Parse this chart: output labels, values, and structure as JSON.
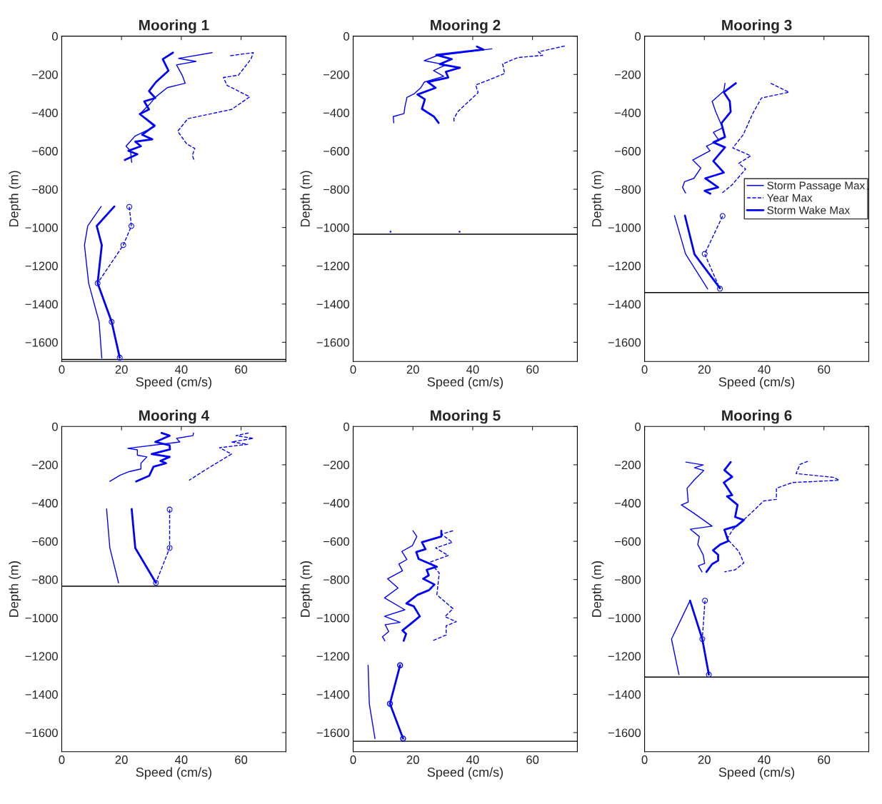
{
  "chart_data": [
    {
      "type": "line",
      "title": "Mooring 1",
      "xlabel": "Speed (cm/s)",
      "ylabel": "Depth (m)",
      "xlim": [
        0,
        75
      ],
      "ylim": [
        -1700,
        0
      ],
      "xticks": [
        0,
        20,
        40,
        60
      ],
      "yticks": [
        -1600,
        -1400,
        -1200,
        -1000,
        -800,
        -600,
        -400,
        -200,
        0
      ],
      "series": [
        {
          "color": "#0000ff",
          "line_style": "solid",
          "marker": "none",
          "x": [
            50.3,
            39.1,
            44.9,
            38.4,
            40.3,
            41.3,
            35.3,
            31.5,
            29.2,
            26.1,
            31.1,
            24.6,
            21.5,
            23.0,
            23.4
          ],
          "values": [
            -86,
            -116,
            -132,
            -150,
            -204,
            -246,
            -269,
            -317,
            -359,
            -407,
            -473,
            -521,
            -575,
            -599,
            -659
          ]
        },
        {
          "color": "#0000ff",
          "line_style": "dashed",
          "marker": "none",
          "x": [
            56.4,
            64.1,
            63.3,
            59.1,
            54.1,
            55.3,
            62.9,
            56.8,
            42.2,
            38.8,
            41.8,
            44.5,
            43.7,
            44.4
          ],
          "values": [
            -102,
            -86,
            -120,
            -204,
            -216,
            -257,
            -317,
            -383,
            -431,
            -497,
            -563,
            -587,
            -623,
            -653
          ]
        },
        {
          "color": "#0000ff",
          "line_style": "solid",
          "marker": "none",
          "x": [
            37.2,
            33.8,
            35.7,
            31.5,
            29.2,
            31.3,
            27.6,
            29.2,
            26.1,
            31.1,
            26.9,
            30.3,
            24.6,
            26.5,
            22.3,
            25.3,
            21.1
          ],
          "values": [
            -86,
            -120,
            -180,
            -240,
            -287,
            -323,
            -341,
            -383,
            -407,
            -467,
            -515,
            -539,
            -551,
            -575,
            -599,
            -617,
            -647
          ]
        },
        {
          "color": "#0000ff",
          "line_style": "solid",
          "marker": "none",
          "x": [
            13.2,
            8.7,
            7.6,
            9.0,
            12.5,
            13.4
          ],
          "values": [
            -890,
            -992,
            -1092,
            -1291,
            -1493,
            -1683
          ]
        },
        {
          "color": "#0000ff",
          "line_style": "dashed",
          "marker": "circle",
          "x": [
            22.6,
            23.3,
            20.6,
            12.0,
            16.7,
            19.4
          ],
          "values": [
            -892,
            -992,
            -1092,
            -1291,
            -1493,
            -1680
          ]
        },
        {
          "color": "#0000ff",
          "line_style": "solid",
          "marker": "none",
          "x": [
            17.6,
            11.7,
            13.4,
            12.0,
            16.7,
            19.4
          ],
          "values": [
            -890,
            -992,
            -1092,
            -1291,
            -1493,
            -1680
          ]
        }
      ],
      "ref_lines": [
        {
          "axis": "y",
          "value": -1690,
          "color": "#000000"
        }
      ]
    },
    {
      "type": "line",
      "title": "Mooring 2",
      "xlabel": "Speed (cm/s)",
      "ylabel": "Depth (m)",
      "xlim": [
        0,
        75
      ],
      "ylim": [
        -1700,
        0
      ],
      "xticks": [
        0,
        20,
        40,
        60
      ],
      "yticks": [
        -1600,
        -1400,
        -1200,
        -1000,
        -800,
        -600,
        -400,
        -200,
        0
      ],
      "series": [
        {
          "color": "#0000ff",
          "line_style": "solid",
          "marker": "none",
          "x": [
            46.4,
            28.0,
            23.8,
            31.0,
            26.9,
            30.3,
            23.8,
            22.6,
            20.5,
            18.0,
            17.3,
            17.0,
            13.4,
            13.6
          ],
          "values": [
            -66,
            -102,
            -128,
            -150,
            -180,
            -210,
            -240,
            -270,
            -300,
            -320,
            -370,
            -405,
            -420,
            -453
          ]
        },
        {
          "color": "#0000ff",
          "line_style": "dashed",
          "marker": "none",
          "x": [
            70.8,
            62.0,
            63.4,
            55.0,
            50.0,
            50.7,
            46.0,
            41.0,
            41.8,
            38.0,
            35.0,
            33.7,
            33.8
          ],
          "values": [
            -51,
            -82,
            -100,
            -112,
            -145,
            -195,
            -225,
            -255,
            -295,
            -350,
            -395,
            -430,
            -453
          ]
        },
        {
          "color": "#0000ff",
          "line_style": "solid",
          "marker": "none",
          "x": [
            41.4,
            43.6,
            27.8,
            33.0,
            29.0,
            35.7,
            31.0,
            31.8,
            25.0,
            27.6,
            21.5,
            24.0,
            23.0,
            27.0,
            28.6
          ],
          "values": [
            -54,
            -70,
            -98,
            -120,
            -146,
            -165,
            -186,
            -216,
            -240,
            -270,
            -305,
            -330,
            -380,
            -420,
            -453
          ]
        },
        {
          "type": "scatter",
          "color": "#0000ff",
          "x": [
            12.5,
            35.6
          ],
          "values": [
            -1022,
            -1022
          ]
        }
      ],
      "ref_lines": [
        {
          "axis": "y",
          "value": -1035,
          "color": "#000000"
        }
      ]
    },
    {
      "type": "line",
      "title": "Mooring 3",
      "xlabel": "Speed (cm/s)",
      "ylabel": "Depth (m)",
      "xlim": [
        0,
        75
      ],
      "ylim": [
        -1700,
        0
      ],
      "xticks": [
        0,
        20,
        40,
        60
      ],
      "yticks": [
        -1600,
        -1400,
        -1200,
        -1000,
        -800,
        -600,
        -400,
        -200,
        0
      ],
      "legend": "right",
      "series": [
        {
          "name": "Storm Passage Max",
          "color": "#0000ff",
          "line_style": "solid",
          "marker": "none",
          "x": [
            26.9,
            26.5,
            22.6,
            23.8,
            26.1,
            23.0,
            24.9,
            20.7,
            21.9,
            16.1,
            18.8,
            16.5,
            13.4,
            12.7,
            13.7
          ],
          "values": [
            -246,
            -287,
            -341,
            -395,
            -479,
            -503,
            -545,
            -575,
            -599,
            -647,
            -689,
            -743,
            -760,
            -790,
            -820
          ]
        },
        {
          "name": "Year Max",
          "color": "#0000ff",
          "line_style": "dashed",
          "marker": "none",
          "x": [
            42.2,
            48.3,
            39.1,
            36.1,
            33.0,
            29.5,
            35.5,
            31.5,
            33.8,
            29.2,
            25.9
          ],
          "values": [
            -246,
            -293,
            -323,
            -407,
            -515,
            -584,
            -625,
            -665,
            -695,
            -778,
            -820
          ]
        },
        {
          "name": "Storm Wake Max",
          "color": "#0000ff",
          "line_style": "solid",
          "marker": "none",
          "x": [
            30.5,
            26.5,
            28.5,
            28.8,
            25.7,
            26.9,
            23.0,
            26.9,
            23.0,
            26.5,
            20.3,
            24.6,
            20.1,
            22.0
          ],
          "values": [
            -246,
            -293,
            -340,
            -395,
            -455,
            -527,
            -555,
            -581,
            -653,
            -713,
            -743,
            -790,
            -808,
            -823
          ]
        },
        {
          "color": "#0000ff",
          "line_style": "solid",
          "marker": "none",
          "x": [
            10.0,
            13.7,
            21.1
          ],
          "values": [
            -938,
            -1138,
            -1321
          ]
        },
        {
          "color": "#0000ff",
          "line_style": "dashed",
          "marker": "circle",
          "x": [
            26.1,
            20.1,
            25.2
          ],
          "values": [
            -940,
            -1138,
            -1320
          ]
        },
        {
          "color": "#0000ff",
          "line_style": "solid",
          "marker": "none",
          "x": [
            13.5,
            16.7,
            25.2
          ],
          "values": [
            -938,
            -1140,
            -1317
          ]
        }
      ],
      "ref_lines": [
        {
          "axis": "y",
          "value": -1340,
          "color": "#000000"
        }
      ]
    },
    {
      "type": "line",
      "title": "Mooring 4",
      "xlabel": "Speed (cm/s)",
      "ylabel": "Depth (m)",
      "xlim": [
        0,
        75
      ],
      "ylim": [
        -1700,
        0
      ],
      "xticks": [
        0,
        20,
        40,
        60
      ],
      "yticks": [
        -1600,
        -1400,
        -1200,
        -1000,
        -800,
        -600,
        -400,
        -200,
        0
      ],
      "series": [
        {
          "color": "#0000ff",
          "line_style": "solid",
          "marker": "none",
          "x": [
            44.1,
            43.9,
            38.4,
            39.5,
            22.1,
            25.3,
            25.3,
            28.5,
            26.5,
            26.5,
            22.3,
            19.6,
            16.1
          ],
          "values": [
            -34,
            -48,
            -62,
            -81,
            -114,
            -122,
            -150,
            -159,
            -192,
            -222,
            -237,
            -254,
            -287
          ]
        },
        {
          "color": "#0000ff",
          "line_style": "dashed",
          "marker": "none",
          "x": [
            62.5,
            58.3,
            64.1,
            56.8,
            62.2,
            52.8,
            56.8,
            49.5,
            42.6
          ],
          "values": [
            -34,
            -48,
            -62,
            -81,
            -93,
            -111,
            -144,
            -213,
            -281
          ]
        },
        {
          "color": "#0000ff",
          "line_style": "solid",
          "marker": "none",
          "x": [
            33.4,
            36.1,
            31.3,
            36.1,
            36.2,
            30.1,
            36.1,
            33.0,
            34.9,
            30.7,
            29.3,
            24.9
          ],
          "values": [
            -34,
            -48,
            -81,
            -98,
            -120,
            -144,
            -159,
            -180,
            -192,
            -210,
            -257,
            -287
          ]
        },
        {
          "color": "#0000ff",
          "line_style": "solid",
          "marker": "none",
          "x": [
            15.0,
            16.1,
            19.0
          ],
          "values": [
            -431,
            -635,
            -817
          ]
        },
        {
          "color": "#0000ff",
          "line_style": "dashed",
          "marker": "circle",
          "x": [
            36.1,
            36.1,
            31.5
          ],
          "values": [
            -434,
            -635,
            -817
          ]
        },
        {
          "color": "#0000ff",
          "line_style": "solid",
          "marker": "none",
          "x": [
            23.4,
            24.6,
            31.5
          ],
          "values": [
            -431,
            -635,
            -817
          ]
        }
      ],
      "ref_lines": [
        {
          "axis": "y",
          "value": -835,
          "color": "#000000"
        }
      ]
    },
    {
      "type": "line",
      "title": "Mooring 5",
      "xlabel": "Speed (cm/s)",
      "ylabel": "Depth (m)",
      "xlim": [
        0,
        75
      ],
      "ylim": [
        -1700,
        0
      ],
      "xticks": [
        0,
        20,
        40,
        60
      ],
      "yticks": [
        -1600,
        -1400,
        -1200,
        -1000,
        -800,
        -600,
        -400,
        -200,
        0
      ],
      "series": [
        {
          "color": "#0000ff",
          "line_style": "solid",
          "marker": "none",
          "x": [
            20.0,
            21.3,
            19.8,
            16.3,
            18.0,
            15.3,
            16.5,
            11.5,
            15.0,
            10.5,
            17.3,
            10.5,
            15.7,
            10.7,
            11.9,
            9.8,
            10.6
          ],
          "values": [
            -545,
            -575,
            -623,
            -653,
            -695,
            -719,
            -754,
            -796,
            -844,
            -896,
            -958,
            -992,
            -1024,
            -1036,
            -1072,
            -1099,
            -1120
          ]
        },
        {
          "color": "#0000ff",
          "line_style": "dashed",
          "marker": "none",
          "x": [
            33.4,
            29.5,
            33.2,
            27.6,
            31.8,
            25.7,
            28.8,
            28.0,
            33.4,
            30.7,
            34.5,
            31.1,
            31.1,
            26.5
          ],
          "values": [
            -545,
            -563,
            -605,
            -635,
            -674,
            -709,
            -766,
            -880,
            -952,
            -994,
            -1020,
            -1042,
            -1090,
            -1120
          ]
        },
        {
          "color": "#0000ff",
          "line_style": "solid",
          "marker": "none",
          "x": [
            29.5,
            29.5,
            23.0,
            24.2,
            21.1,
            21.9,
            28.0,
            24.6,
            25.3,
            23.4,
            27.2,
            25.3,
            21.5,
            17.8,
            20.3,
            22.3,
            19.2,
            16.5,
            17.7,
            16.9
          ],
          "values": [
            -545,
            -575,
            -605,
            -641,
            -656,
            -692,
            -733,
            -749,
            -778,
            -796,
            -826,
            -856,
            -880,
            -925,
            -940,
            -992,
            -1032,
            -1066,
            -1084,
            -1120
          ]
        },
        {
          "color": "#0000ff",
          "line_style": "solid",
          "marker": "none",
          "x": [
            5.0,
            5.4,
            7.3
          ],
          "values": [
            -1248,
            -1449,
            -1631
          ]
        },
        {
          "type": "scatter",
          "color": "#0000ff",
          "marker": "circle",
          "x": [
            15.7,
            12.3,
            16.7
          ],
          "values": [
            -1248,
            -1449,
            -1631
          ]
        },
        {
          "color": "#0000ff",
          "line_style": "solid",
          "marker": "none",
          "x": [
            15.7,
            12.3,
            16.7
          ],
          "values": [
            -1248,
            -1449,
            -1631
          ]
        }
      ],
      "ref_lines": [
        {
          "axis": "y",
          "value": -1645,
          "color": "#000000"
        }
      ]
    },
    {
      "type": "line",
      "title": "Mooring 6",
      "xlabel": "Speed (cm/s)",
      "ylabel": "Depth (m)",
      "xlim": [
        0,
        75
      ],
      "ylim": [
        -1700,
        0
      ],
      "xticks": [
        0,
        20,
        40,
        60
      ],
      "yticks": [
        -1600,
        -1400,
        -1200,
        -1000,
        -800,
        -600,
        -400,
        -200,
        0
      ],
      "series": [
        {
          "color": "#0000ff",
          "line_style": "solid",
          "marker": "none",
          "x": [
            13.8,
            19.6,
            16.7,
            19.8,
            16.7,
            14.2,
            14.6,
            12.3,
            16.1,
            18.8,
            22.6,
            15.3,
            18.3,
            17.8,
            19.6,
            20.1,
            18.0,
            19.2
          ],
          "values": [
            -186,
            -201,
            -216,
            -230,
            -278,
            -323,
            -395,
            -410,
            -449,
            -479,
            -521,
            -537,
            -575,
            -617,
            -671,
            -716,
            -728,
            -760
          ]
        },
        {
          "color": "#0000ff",
          "line_style": "dashed",
          "marker": "none",
          "x": [
            54.6,
            52.0,
            50.7,
            63.3,
            65.1,
            49.5,
            44.1,
            44.1,
            39.9,
            33.0,
            29.5,
            27.6,
            31.5,
            33.2,
            30.3,
            26.7
          ],
          "values": [
            -182,
            -198,
            -246,
            -266,
            -281,
            -293,
            -323,
            -381,
            -389,
            -491,
            -539,
            -587,
            -653,
            -713,
            -749,
            -760
          ]
        },
        {
          "color": "#0000ff",
          "line_style": "solid",
          "marker": "none",
          "x": [
            28.8,
            26.7,
            29.3,
            26.5,
            29.3,
            27.6,
            31.1,
            30.3,
            33.2,
            30.7,
            26.7,
            28.0,
            25.3,
            22.9,
            24.6,
            24.6,
            22.6,
            20.7
          ],
          "values": [
            -186,
            -228,
            -263,
            -293,
            -359,
            -365,
            -410,
            -473,
            -489,
            -521,
            -539,
            -599,
            -617,
            -647,
            -671,
            -701,
            -719,
            -760
          ]
        },
        {
          "color": "#0000ff",
          "line_style": "solid",
          "marker": "none",
          "x": [
            15.2,
            9.0,
            11.5
          ],
          "values": [
            -910,
            -1111,
            -1297
          ]
        },
        {
          "color": "#0000ff",
          "line_style": "dashed",
          "marker": "circle",
          "x": [
            20.2,
            19.3,
            21.5
          ],
          "values": [
            -910,
            -1111,
            -1297
          ]
        },
        {
          "color": "#0000ff",
          "line_style": "solid",
          "marker": "none",
          "x": [
            15.2,
            19.3,
            21.5
          ],
          "values": [
            -910,
            -1111,
            -1297
          ]
        }
      ],
      "ref_lines": [
        {
          "axis": "y",
          "value": -1310,
          "color": "#000000"
        }
      ]
    }
  ]
}
